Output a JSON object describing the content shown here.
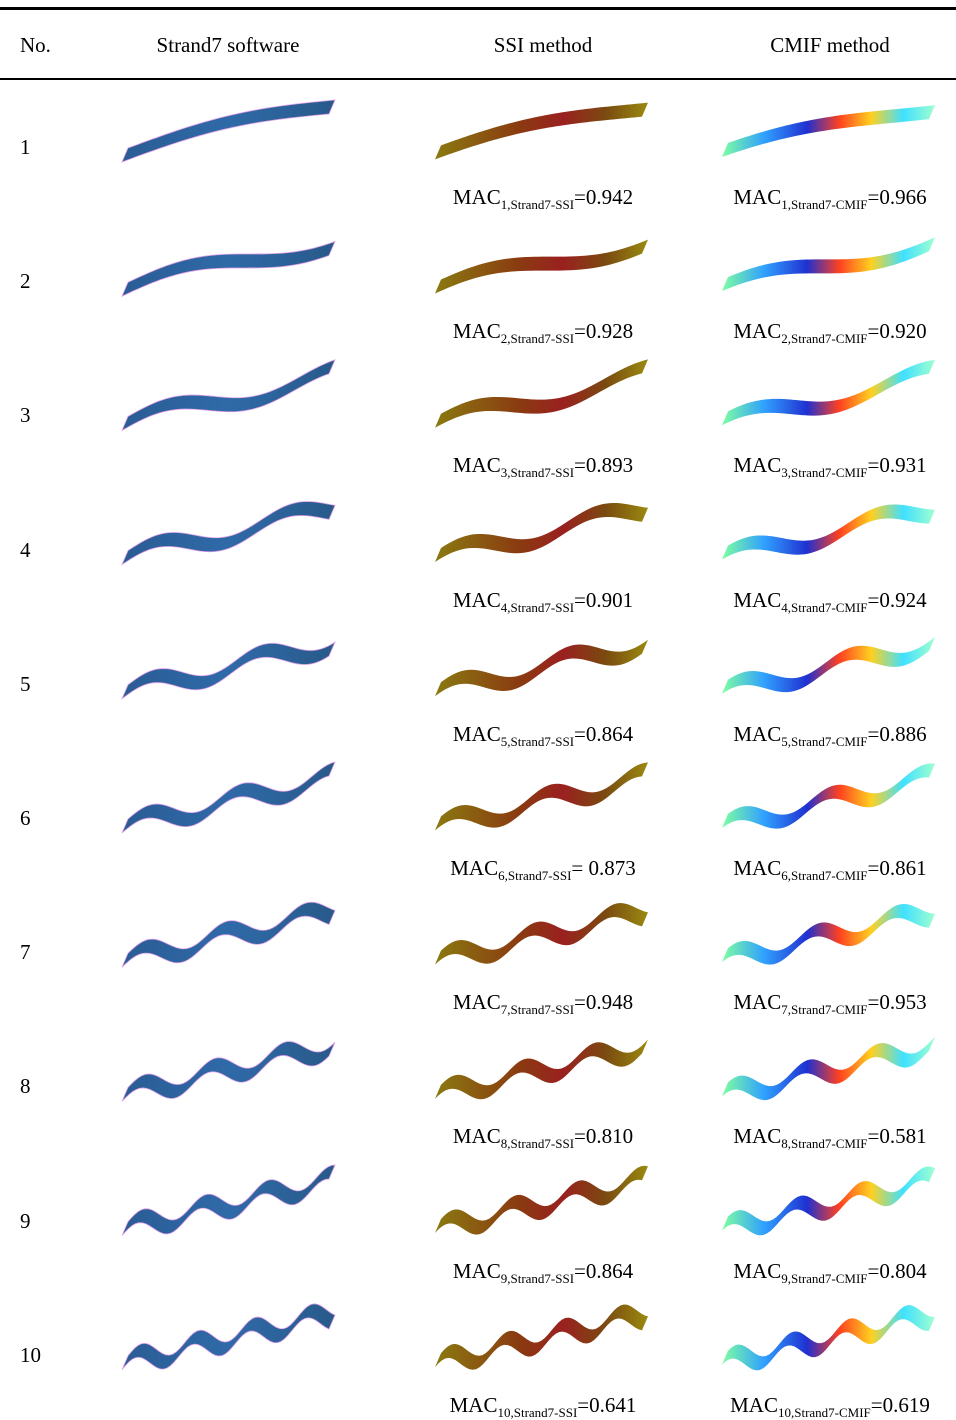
{
  "table": {
    "header": [
      "No.",
      "Strand7 software",
      "SSI method",
      "CMIF method"
    ],
    "rows": [
      {
        "no": "1",
        "ssi": {
          "label": "MAC",
          "sub": "1,Strand7-SSI",
          "value": "=0.942"
        },
        "cmif": {
          "label": "MAC",
          "sub": "1,Strand7-CMIF",
          "value": "=0.966"
        }
      },
      {
        "no": "2",
        "ssi": {
          "label": "MAC",
          "sub": "2,Strand7-SSI",
          "value": "=0.928"
        },
        "cmif": {
          "label": "MAC",
          "sub": "2,Strand7-CMIF",
          "value": "=0.920"
        }
      },
      {
        "no": "3",
        "ssi": {
          "label": "MAC",
          "sub": "3,Strand7-SSI",
          "value": "=0.893"
        },
        "cmif": {
          "label": "MAC",
          "sub": "3,Strand7-CMIF",
          "value": "=0.931"
        }
      },
      {
        "no": "4",
        "ssi": {
          "label": "MAC",
          "sub": "4,Strand7-SSI",
          "value": "=0.901"
        },
        "cmif": {
          "label": "MAC",
          "sub": "4,Strand7-CMIF",
          "value": "=0.924"
        }
      },
      {
        "no": "5",
        "ssi": {
          "label": "MAC",
          "sub": "5,Strand7-SSI",
          "value": "=0.864"
        },
        "cmif": {
          "label": "MAC",
          "sub": "5,Strand7-CMIF",
          "value": "=0.886"
        }
      },
      {
        "no": "6",
        "ssi": {
          "label": "MAC",
          "sub": "6,Strand7-SSI",
          "value": "= 0.873"
        },
        "cmif": {
          "label": "MAC",
          "sub": "6,Strand7-CMIF",
          "value": "=0.861"
        }
      },
      {
        "no": "7",
        "ssi": {
          "label": "MAC",
          "sub": "7,Strand7-SSI",
          "value": "=0.948"
        },
        "cmif": {
          "label": "MAC",
          "sub": "7,Strand7-CMIF",
          "value": "=0.953"
        }
      },
      {
        "no": "8",
        "ssi": {
          "label": "MAC",
          "sub": "8,Strand7-SSI",
          "value": "=0.810"
        },
        "cmif": {
          "label": "MAC",
          "sub": "8,Strand7-CMIF",
          "value": "=0.581"
        }
      },
      {
        "no": "9",
        "ssi": {
          "label": "MAC",
          "sub": "9,Strand7-SSI",
          "value": "=0.864"
        },
        "cmif": {
          "label": "MAC",
          "sub": "9,Strand7-CMIF",
          "value": "=0.804"
        }
      },
      {
        "no": "10",
        "ssi": {
          "label": "MAC",
          "sub": "10,Strand7-SSI",
          "value": "=0.641"
        },
        "cmif": {
          "label": "MAC",
          "sub": "10,Strand7-CMIF",
          "value": "=0.619"
        }
      }
    ]
  }
}
